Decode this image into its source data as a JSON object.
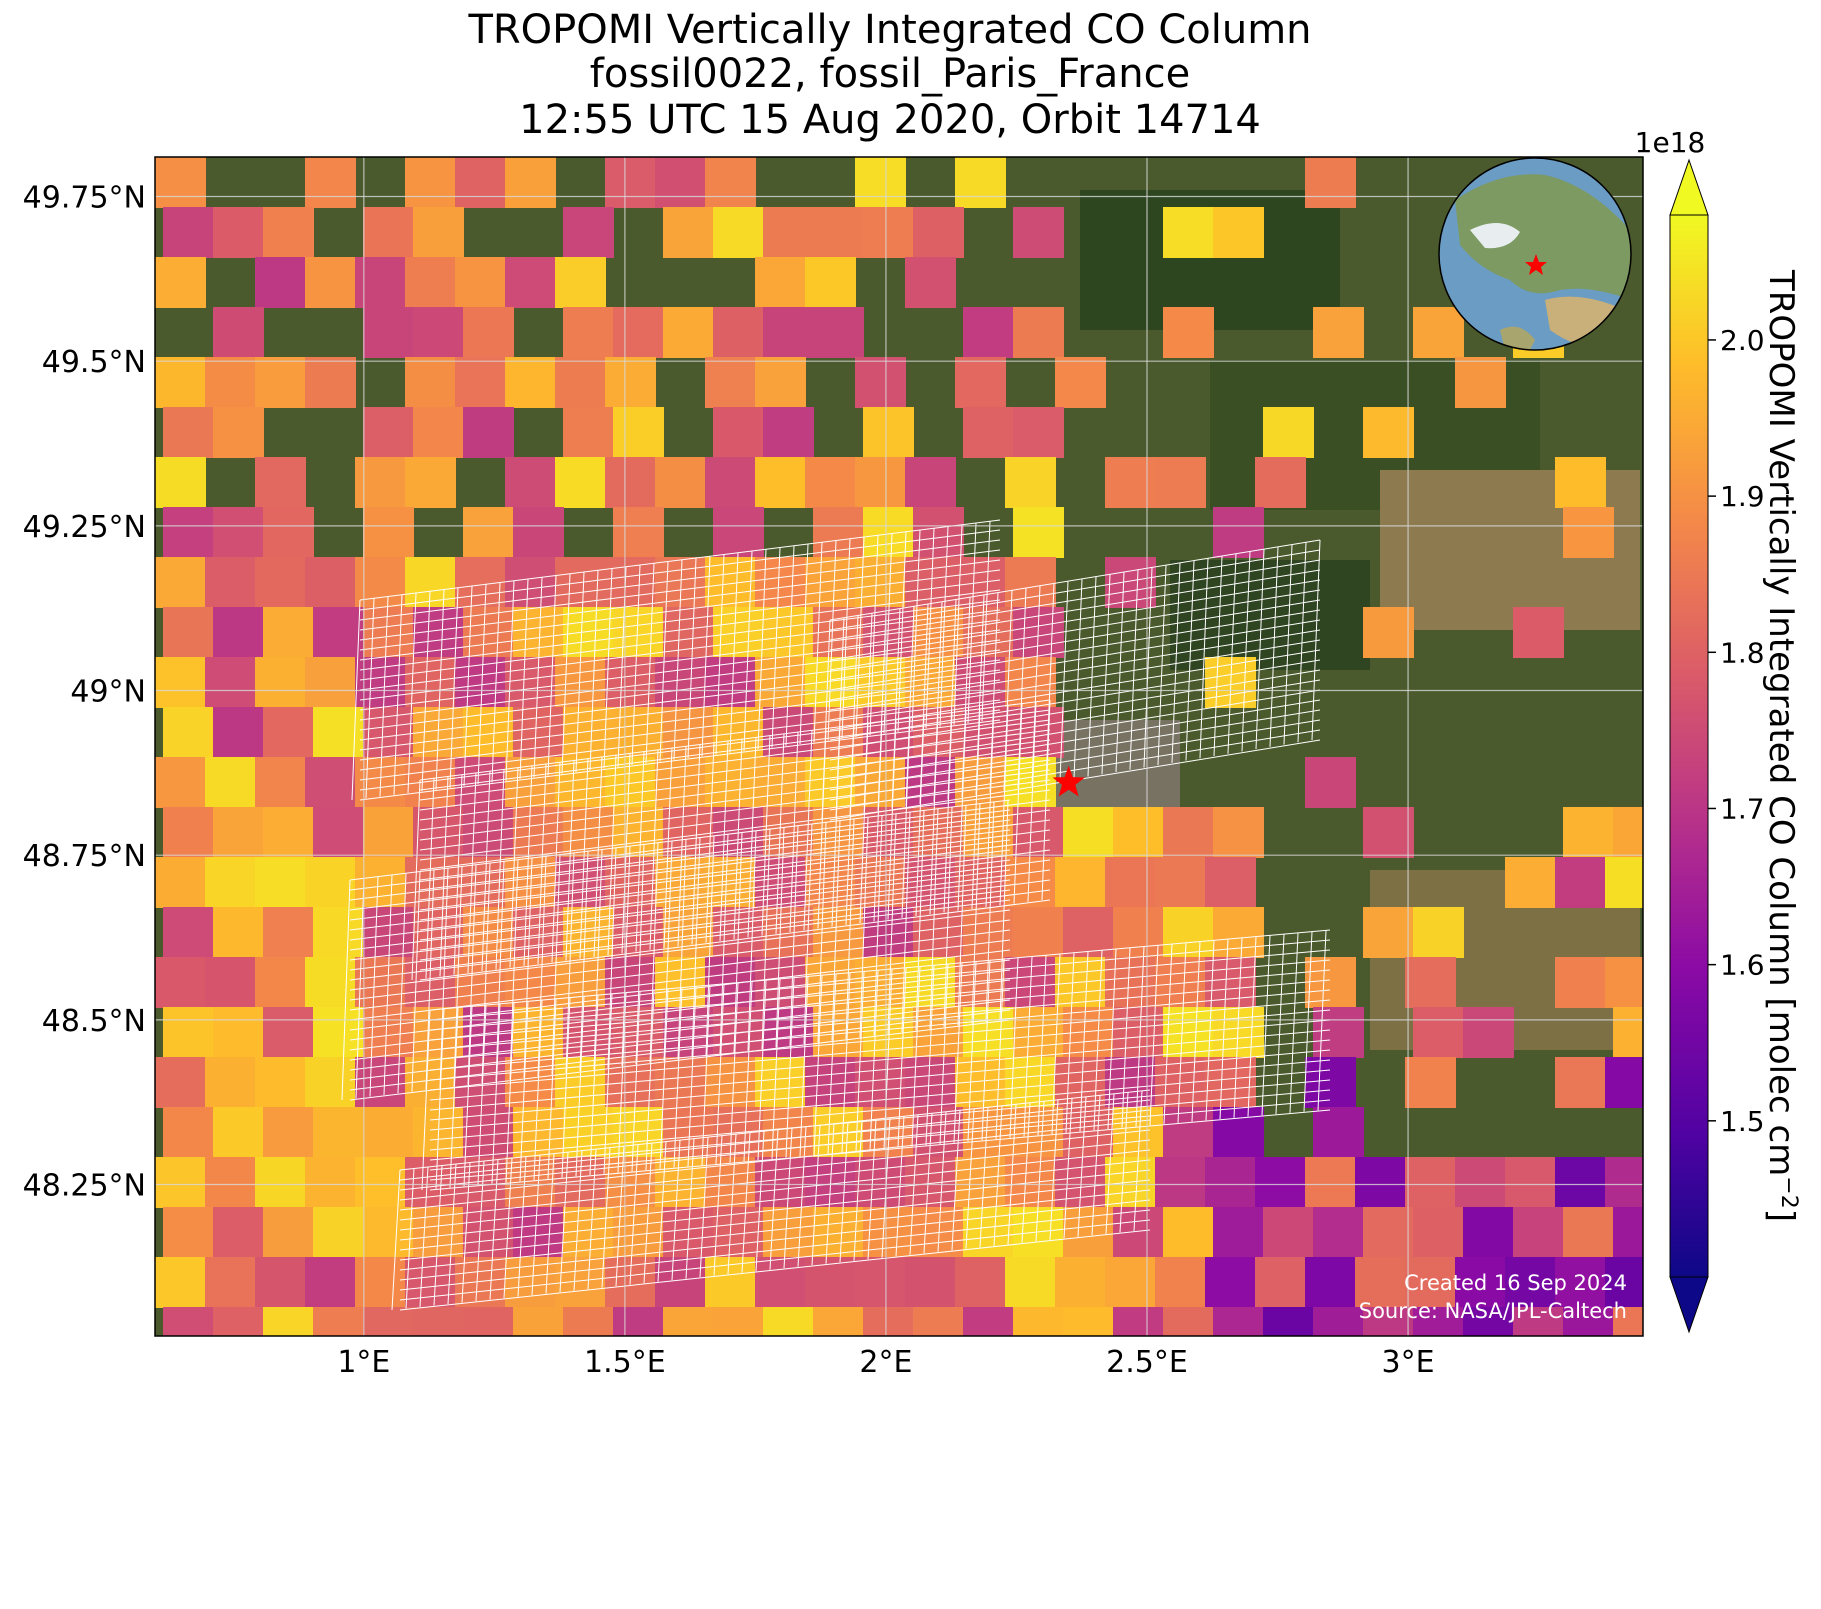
{
  "title": {
    "line1": "TROPOMI Vertically Integrated CO Column",
    "line2": "fossil0022, fossil_Paris_France",
    "line3": "12:55 UTC 15 Aug 2020, Orbit 14714"
  },
  "map": {
    "lon_range": [
      0.6,
      3.45
    ],
    "lat_range": [
      48.02,
      49.81
    ],
    "lon_ticks": [
      {
        "value": 1.0,
        "label": "1°E"
      },
      {
        "value": 1.5,
        "label": "1.5°E"
      },
      {
        "value": 2.0,
        "label": "2°E"
      },
      {
        "value": 2.5,
        "label": "2.5°E"
      },
      {
        "value": 3.0,
        "label": "3°E"
      }
    ],
    "lat_ticks": [
      {
        "value": 49.75,
        "label": "49.75°N"
      },
      {
        "value": 49.5,
        "label": "49.5°N"
      },
      {
        "value": 49.25,
        "label": "49.25°N"
      },
      {
        "value": 49.0,
        "label": "49°N"
      },
      {
        "value": 48.75,
        "label": "48.75°N"
      },
      {
        "value": 48.5,
        "label": "48.5°N"
      },
      {
        "value": 48.25,
        "label": "48.25°N"
      }
    ],
    "target_marker": {
      "lon": 2.35,
      "lat": 48.86,
      "color": "#ff0000"
    },
    "gridlines": true,
    "basemap": "satellite imagery",
    "inset_globe": "globe-icon"
  },
  "colorbar": {
    "label": "TROPOMI Vertically Integrated CO Column [molec cm",
    "label_exp": "−2",
    "label_end": "]",
    "multiplier": "1e18",
    "range": [
      1.4,
      2.08
    ],
    "ticks": [
      "1.5",
      "1.6",
      "1.7",
      "1.8",
      "1.9",
      "2.0"
    ],
    "tick_values": [
      1.5,
      1.6,
      1.7,
      1.8,
      1.9,
      2.0
    ],
    "colormap": "plasma",
    "extend": "both"
  },
  "annotations": {
    "created": "Created 16 Sep 2024",
    "source": "Source: NASA/JPL-Caltech"
  },
  "colors": {
    "marker": "#ff0000",
    "grid": "#d8d8d8",
    "footprint": "#ffffff"
  }
}
